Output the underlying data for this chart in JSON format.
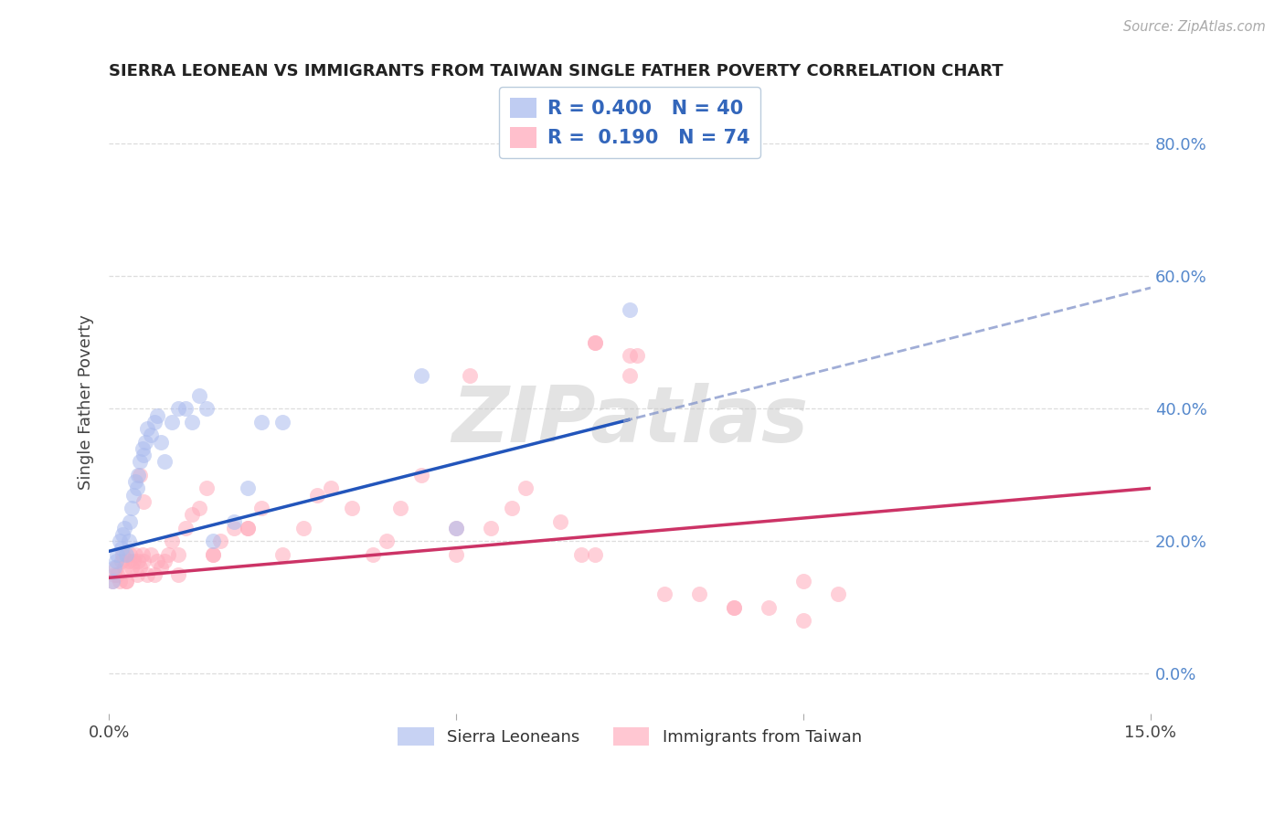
{
  "title": "SIERRA LEONEAN VS IMMIGRANTS FROM TAIWAN SINGLE FATHER POVERTY CORRELATION CHART",
  "source": "Source: ZipAtlas.com",
  "ylabel": "Single Father Poverty",
  "xmin": 0.0,
  "xmax": 15.0,
  "ymin": -6.0,
  "ymax": 88.0,
  "ytick_vals": [
    0,
    20,
    40,
    60,
    80
  ],
  "ytick_labels": [
    "0.0%",
    "20.0%",
    "40.0%",
    "60.0%",
    "80.0%"
  ],
  "xtick_vals": [
    0,
    5,
    10,
    15
  ],
  "xtick_labels": [
    "0.0%",
    "",
    "",
    "15.0%"
  ],
  "color_blue": "#AABBEE",
  "color_pink": "#FFAABB",
  "blue_line_color": "#2255BB",
  "pink_line_color": "#CC3366",
  "legend_R1": "0.400",
  "legend_N1": "40",
  "legend_R2": "0.190",
  "legend_N2": "74",
  "series1_label": "Sierra Leoneans",
  "series2_label": "Immigrants from Taiwan",
  "watermark": "ZIPatlas",
  "blue_slope": 2.65,
  "blue_intercept": 18.5,
  "pink_slope": 0.9,
  "pink_intercept": 14.5,
  "sierra_x": [
    0.05,
    0.08,
    0.1,
    0.12,
    0.15,
    0.18,
    0.2,
    0.22,
    0.25,
    0.28,
    0.3,
    0.32,
    0.35,
    0.38,
    0.4,
    0.42,
    0.45,
    0.48,
    0.5,
    0.52,
    0.55,
    0.6,
    0.65,
    0.7,
    0.75,
    0.8,
    0.9,
    1.0,
    1.1,
    1.2,
    1.3,
    1.4,
    1.5,
    1.8,
    2.0,
    2.2,
    2.5,
    4.5,
    5.0,
    7.5
  ],
  "sierra_y": [
    14,
    16,
    17,
    18,
    20,
    19,
    21,
    22,
    18,
    20,
    23,
    25,
    27,
    29,
    28,
    30,
    32,
    34,
    33,
    35,
    37,
    36,
    38,
    39,
    35,
    32,
    38,
    40,
    40,
    38,
    42,
    40,
    20,
    23,
    28,
    38,
    38,
    45,
    22,
    55
  ],
  "taiwan_x": [
    0.05,
    0.08,
    0.1,
    0.12,
    0.15,
    0.18,
    0.2,
    0.22,
    0.25,
    0.28,
    0.3,
    0.32,
    0.35,
    0.38,
    0.4,
    0.42,
    0.45,
    0.48,
    0.5,
    0.55,
    0.6,
    0.65,
    0.7,
    0.75,
    0.8,
    0.85,
    0.9,
    1.0,
    1.1,
    1.2,
    1.3,
    1.4,
    1.5,
    1.6,
    1.8,
    2.0,
    2.2,
    2.5,
    2.8,
    3.0,
    3.2,
    3.5,
    4.0,
    4.5,
    5.0,
    5.2,
    5.5,
    6.0,
    6.5,
    7.0,
    7.5,
    7.6,
    8.0,
    9.0,
    9.5,
    10.0,
    10.5,
    0.25,
    0.45,
    3.8,
    4.2,
    5.8,
    6.8,
    7.0,
    7.5,
    8.5,
    9.0,
    10.0,
    5.0,
    7.0,
    0.5,
    1.0,
    1.5,
    2.0
  ],
  "taiwan_y": [
    14,
    15,
    16,
    15,
    14,
    17,
    18,
    16,
    14,
    17,
    18,
    16,
    17,
    18,
    15,
    17,
    16,
    18,
    17,
    15,
    18,
    15,
    17,
    16,
    17,
    18,
    20,
    18,
    22,
    24,
    25,
    28,
    18,
    20,
    22,
    22,
    25,
    18,
    22,
    27,
    28,
    25,
    20,
    30,
    18,
    45,
    22,
    28,
    23,
    18,
    45,
    48,
    12,
    10,
    10,
    8,
    12,
    14,
    30,
    18,
    25,
    25,
    18,
    50,
    48,
    12,
    10,
    14,
    22,
    50,
    26,
    15,
    18,
    22
  ]
}
